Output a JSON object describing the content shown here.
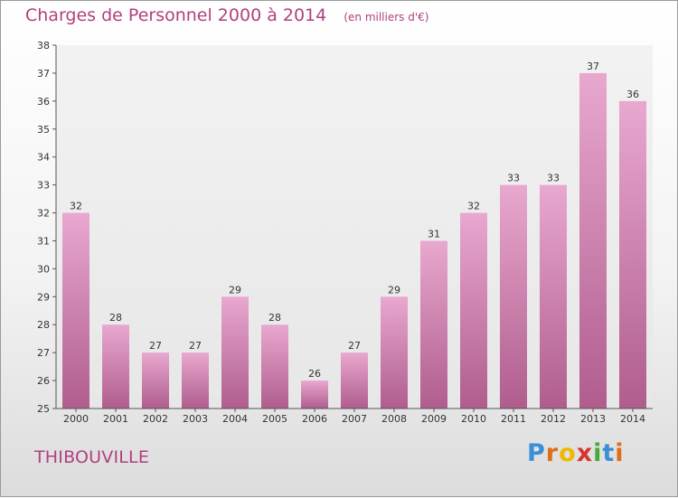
{
  "header": {
    "title": "Charges de Personnel 2000 à 2014",
    "subtitle": "(en milliers d'€)"
  },
  "footer": {
    "commune": "THIBOUVILLE",
    "logo_text": "Proxiti"
  },
  "colors": {
    "title": "#b0417e",
    "bar_top": "#e8a8cf",
    "bar_bottom": "#b05d8d",
    "axis": "#555555"
  },
  "chart_data": {
    "type": "bar",
    "title": "Charges de Personnel 2000 à 2014",
    "subtitle": "(en milliers d'€)",
    "xlabel": "",
    "ylabel": "",
    "categories": [
      "2000",
      "2001",
      "2002",
      "2003",
      "2004",
      "2005",
      "2006",
      "2007",
      "2008",
      "2009",
      "2010",
      "2011",
      "2012",
      "2013",
      "2014"
    ],
    "values": [
      32,
      28,
      27,
      27,
      29,
      28,
      26,
      27,
      29,
      31,
      32,
      33,
      33,
      37,
      36
    ],
    "ylim": [
      25,
      38
    ],
    "yticks": [
      25,
      26,
      27,
      28,
      29,
      30,
      31,
      32,
      33,
      34,
      35,
      36,
      37,
      38
    ],
    "grid": false,
    "legend": "none"
  }
}
